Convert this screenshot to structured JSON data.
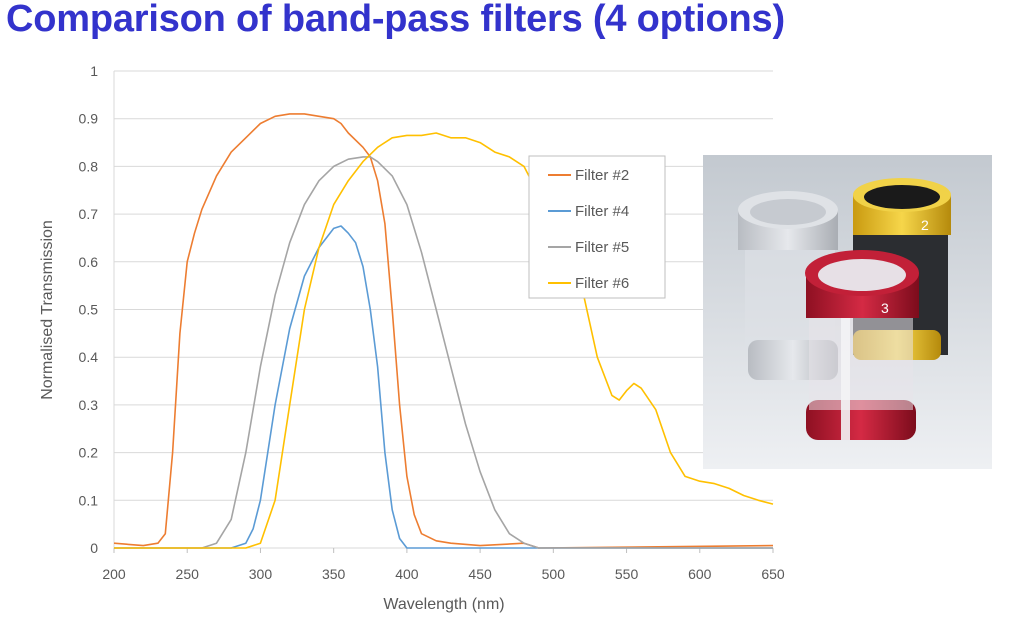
{
  "slide": {
    "title": "Comparison of band-pass filters (4 options)",
    "title_color": "#3333CC"
  },
  "photo": {
    "description_icon": "filter-holders-photo",
    "ring_labels": [
      "2",
      "3"
    ]
  },
  "chart_data": {
    "type": "line",
    "title": "",
    "xlabel": "Wavelength (nm)",
    "ylabel": "Normalised Transmission",
    "xlim": [
      200,
      650
    ],
    "ylim": [
      0,
      1
    ],
    "xticks": [
      200,
      250,
      300,
      350,
      400,
      450,
      500,
      550,
      600,
      650
    ],
    "yticks": [
      0,
      0.1,
      0.2,
      0.3,
      0.4,
      0.5,
      0.6,
      0.7,
      0.8,
      0.9,
      1
    ],
    "ytick_labels": [
      "0",
      "0.1",
      "0.2",
      "0.3",
      "0.4",
      "0.5",
      "0.6",
      "0.7",
      "0.8",
      "0.9",
      "1"
    ],
    "grid": "horizontal",
    "legend": "right",
    "series": [
      {
        "name": "Filter #2",
        "color": "#ED7D31",
        "x": [
          200,
          220,
          230,
          235,
          240,
          245,
          250,
          255,
          260,
          270,
          280,
          290,
          300,
          310,
          320,
          330,
          340,
          350,
          355,
          360,
          370,
          375,
          380,
          385,
          390,
          395,
          400,
          405,
          410,
          420,
          430,
          450,
          480,
          490,
          650
        ],
        "y": [
          0.01,
          0.005,
          0.01,
          0.03,
          0.2,
          0.45,
          0.6,
          0.66,
          0.71,
          0.78,
          0.83,
          0.86,
          0.89,
          0.905,
          0.91,
          0.91,
          0.905,
          0.9,
          0.89,
          0.87,
          0.84,
          0.82,
          0.77,
          0.68,
          0.5,
          0.3,
          0.15,
          0.07,
          0.03,
          0.015,
          0.01,
          0.005,
          0.01,
          0,
          0.005
        ]
      },
      {
        "name": "Filter #4",
        "color": "#5B9BD5",
        "x": [
          200,
          280,
          290,
          295,
          300,
          310,
          320,
          330,
          340,
          350,
          355,
          360,
          365,
          370,
          375,
          380,
          385,
          390,
          395,
          400,
          650
        ],
        "y": [
          0,
          0,
          0.01,
          0.04,
          0.1,
          0.3,
          0.46,
          0.57,
          0.63,
          0.67,
          0.675,
          0.66,
          0.64,
          0.59,
          0.5,
          0.38,
          0.2,
          0.08,
          0.02,
          0,
          0
        ]
      },
      {
        "name": "Filter #5",
        "color": "#A5A5A5",
        "x": [
          200,
          260,
          270,
          280,
          290,
          300,
          310,
          320,
          330,
          340,
          350,
          360,
          370,
          375,
          380,
          390,
          400,
          410,
          420,
          430,
          440,
          450,
          460,
          470,
          480,
          490,
          650
        ],
        "y": [
          0,
          0,
          0.01,
          0.06,
          0.2,
          0.38,
          0.53,
          0.64,
          0.72,
          0.77,
          0.8,
          0.815,
          0.82,
          0.82,
          0.81,
          0.78,
          0.72,
          0.62,
          0.5,
          0.38,
          0.26,
          0.16,
          0.08,
          0.03,
          0.01,
          0,
          0
        ]
      },
      {
        "name": "Filter #6",
        "color": "#FFC000",
        "x": [
          200,
          290,
          300,
          310,
          320,
          330,
          340,
          350,
          360,
          370,
          380,
          390,
          400,
          410,
          420,
          430,
          440,
          450,
          460,
          470,
          480,
          490,
          500,
          510,
          520,
          530,
          540,
          545,
          550,
          555,
          560,
          570,
          580,
          590,
          600,
          610,
          620,
          630,
          640,
          650
        ],
        "y": [
          0,
          0,
          0.01,
          0.1,
          0.3,
          0.5,
          0.63,
          0.72,
          0.77,
          0.81,
          0.84,
          0.86,
          0.865,
          0.865,
          0.87,
          0.86,
          0.86,
          0.85,
          0.83,
          0.82,
          0.8,
          0.74,
          0.66,
          0.6,
          0.54,
          0.4,
          0.32,
          0.31,
          0.33,
          0.345,
          0.335,
          0.29,
          0.2,
          0.15,
          0.14,
          0.135,
          0.125,
          0.11,
          0.1,
          0.092
        ]
      }
    ]
  }
}
